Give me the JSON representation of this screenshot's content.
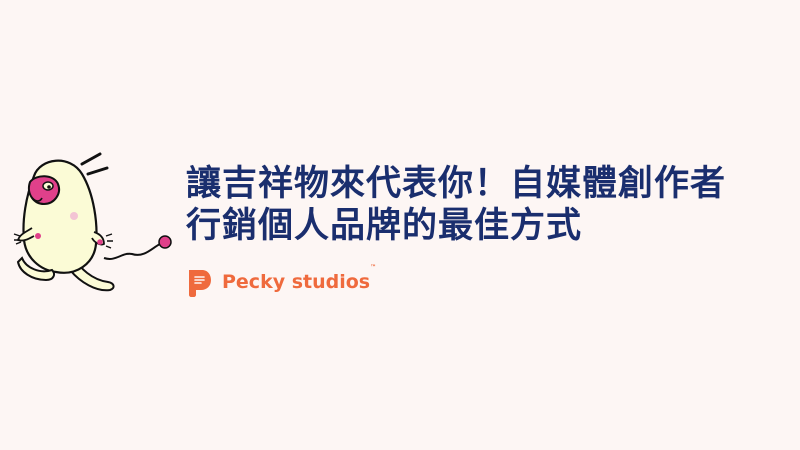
{
  "headline": {
    "line1": "讓吉祥物來代表你！自媒體創作者",
    "line2": "行銷個人品牌的最佳方式"
  },
  "brand": {
    "name": "Pecky studios",
    "trademark": "™"
  },
  "colors": {
    "background": "#fdf6f4",
    "headline": "#1a2e6e",
    "brand": "#ef6a3d",
    "mascot_body": "#fbfbd6",
    "mascot_pink": "#e0408a"
  },
  "icons": {
    "mascot": "running-bird-mascot-illustration",
    "brand_logo": "pecky-p-logo-icon"
  }
}
